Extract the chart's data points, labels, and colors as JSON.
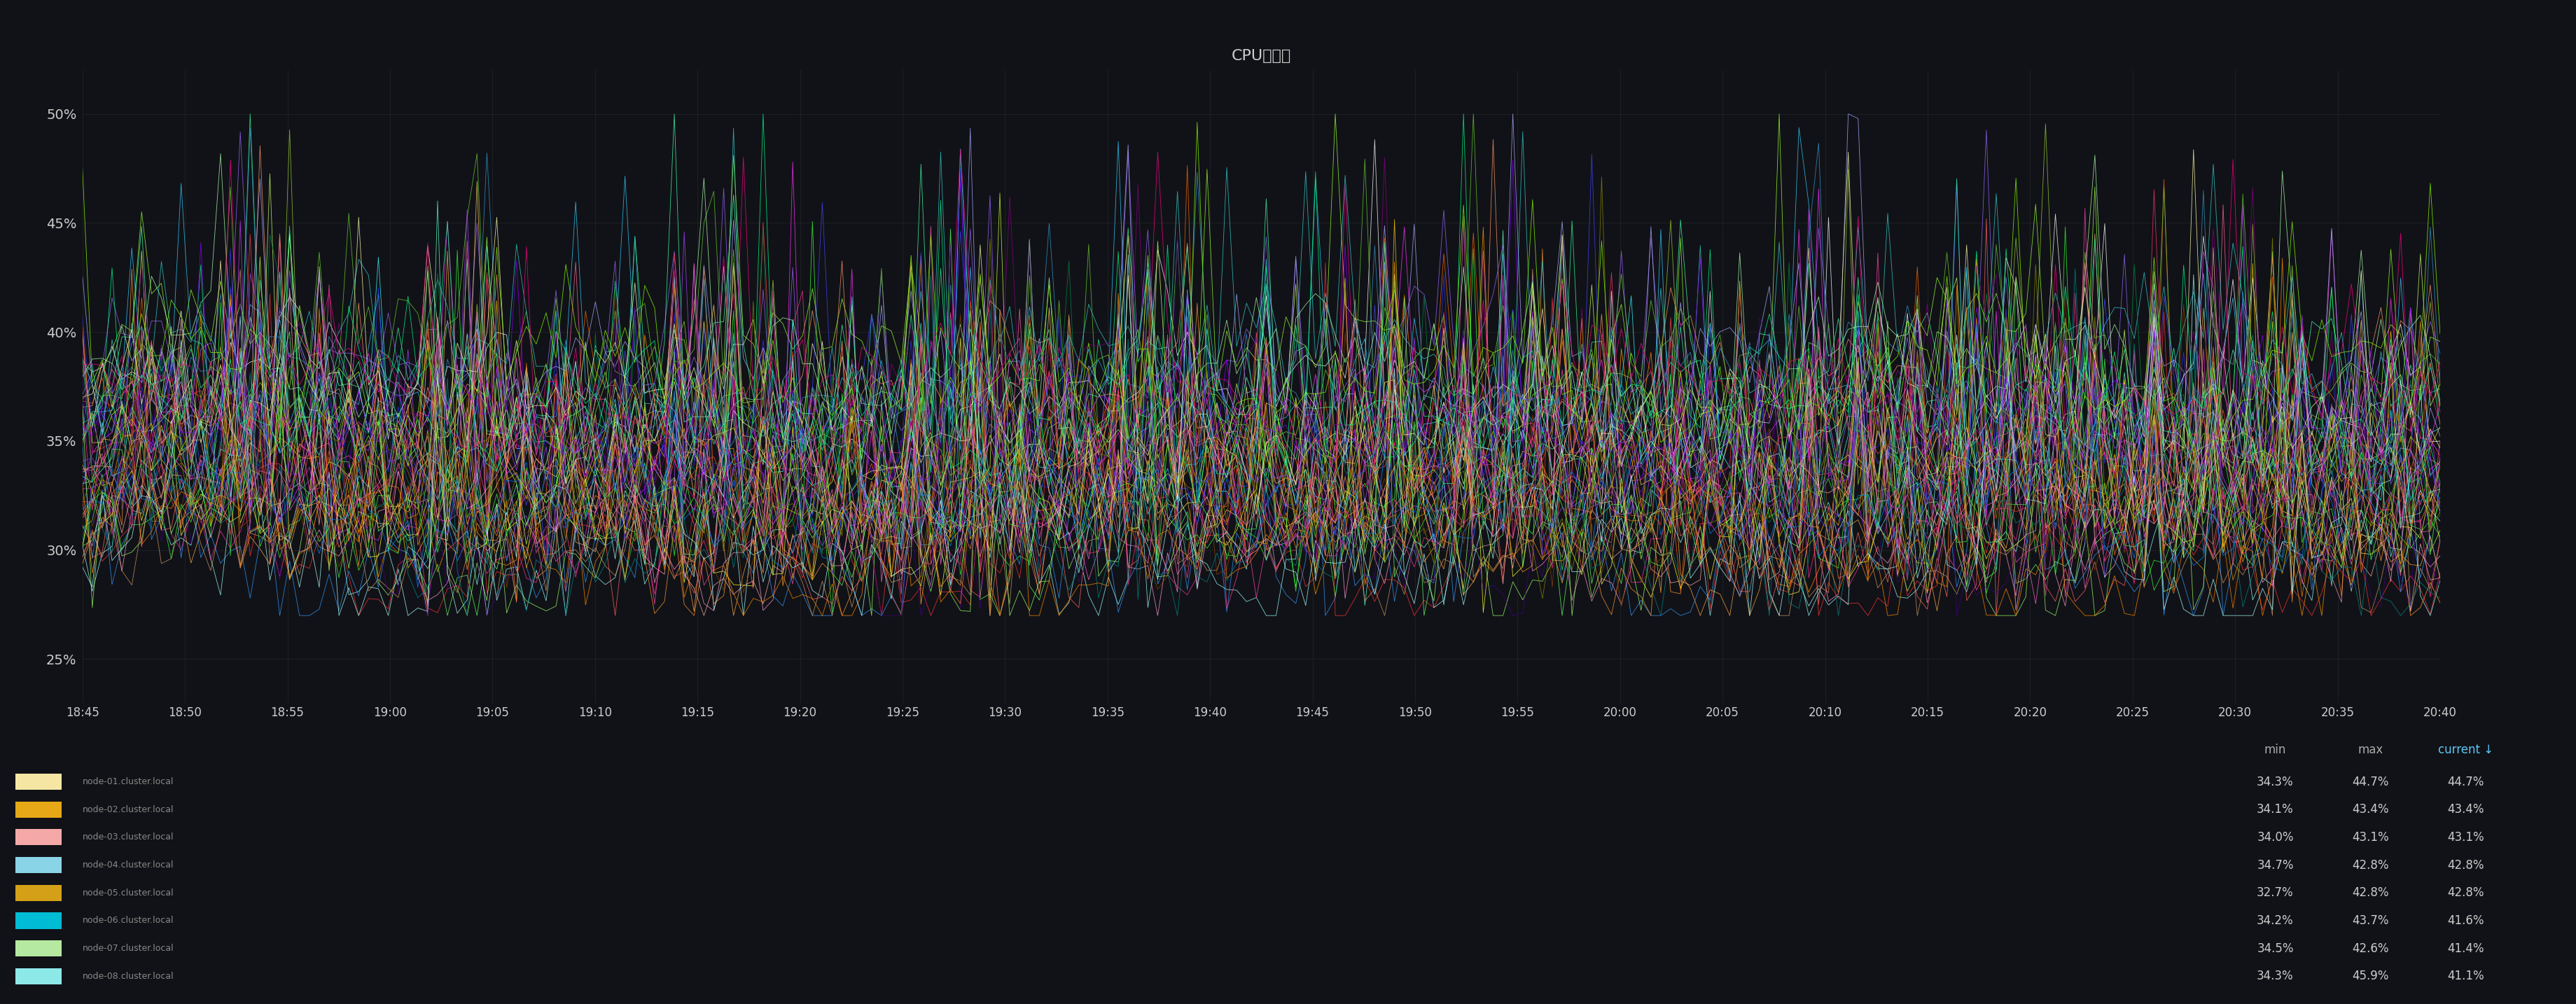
{
  "title": "CPU利用率",
  "background_color": "#111217",
  "plot_bg_color": "#111217",
  "grid_color": "#2a2a2a",
  "text_color": "#cccccc",
  "ylabel_ticks": [
    "25%",
    "30%",
    "35%",
    "40%",
    "45%",
    "50%"
  ],
  "ylim": [
    23,
    52
  ],
  "yticks": [
    25,
    30,
    35,
    40,
    45,
    50
  ],
  "x_labels": [
    "18:45",
    "18:50",
    "18:55",
    "19:00",
    "19:05",
    "19:10",
    "19:15",
    "19:20",
    "19:25",
    "19:30",
    "19:35",
    "19:40",
    "19:45",
    "19:50",
    "19:55",
    "20:00",
    "20:05",
    "20:10",
    "20:15",
    "20:20",
    "20:25",
    "20:30",
    "20:35",
    "20:40"
  ],
  "legend_header_colors": [
    "#aaaaaa",
    "#aaaaaa",
    "#5bc8f5"
  ],
  "legend_entries": [
    {
      "color": "#f5e6a3",
      "min": "34.3%",
      "max": "44.7%",
      "current": "44.7%"
    },
    {
      "color": "#e6a817",
      "min": "34.1%",
      "max": "43.4%",
      "current": "43.4%"
    },
    {
      "color": "#f4a9a8",
      "min": "34.0%",
      "max": "43.1%",
      "current": "43.1%"
    },
    {
      "color": "#8ad4e8",
      "min": "34.7%",
      "max": "42.8%",
      "current": "42.8%"
    },
    {
      "color": "#d4a017",
      "min": "32.7%",
      "max": "42.8%",
      "current": "42.8%"
    },
    {
      "color": "#00bcd4",
      "min": "34.2%",
      "max": "43.7%",
      "current": "41.6%"
    },
    {
      "color": "#b5e8a0",
      "min": "34.5%",
      "max": "42.6%",
      "current": "41.4%"
    },
    {
      "color": "#8de8e8",
      "min": "34.3%",
      "max": "45.9%",
      "current": "41.1%"
    }
  ],
  "series_colors": [
    "#ffffff",
    "#ff6600",
    "#ffcc00",
    "#ff3333",
    "#33ff33",
    "#3399ff",
    "#ff99cc",
    "#99ffff",
    "#ff9900",
    "#cc33ff",
    "#66ff66",
    "#ff6666",
    "#33ccff",
    "#ffff33",
    "#ff33ff",
    "#99ff33",
    "#3333ff",
    "#ff9966",
    "#66ffcc",
    "#ccff33",
    "#ff3399",
    "#33ff99",
    "#9966ff",
    "#ffcc66",
    "#33ffff",
    "#ff6699",
    "#66cc33",
    "#ff9933",
    "#3399cc",
    "#cc9966",
    "#99cc33",
    "#ff3366",
    "#33cccc",
    "#ff66cc",
    "#ccff66",
    "#99ff66",
    "#ff4444",
    "#44ff44",
    "#4444ff",
    "#ffaa44",
    "#44ffaa",
    "#aa44ff",
    "#ff44aa",
    "#aaffaa",
    "#aaaaff",
    "#ffaaaa",
    "#ffffaa",
    "#aaffff",
    "#884400",
    "#008844",
    "#440088",
    "#888800",
    "#008888",
    "#880088",
    "#ff8800",
    "#00ff88",
    "#8800ff",
    "#88ff00",
    "#0088ff",
    "#ff0088"
  ],
  "n_series": 60,
  "n_points": 240
}
